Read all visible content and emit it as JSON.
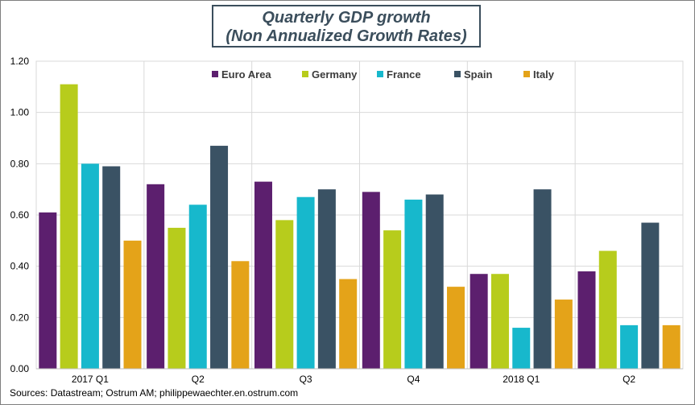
{
  "chart_data": {
    "type": "bar",
    "title": "Quarterly GDP growth",
    "subtitle": "(Non Annualized Growth Rates)",
    "categories": [
      "2017 Q1",
      "Q2",
      "Q3",
      "Q4",
      "2018 Q1",
      "Q2"
    ],
    "series": [
      {
        "name": "Euro Area",
        "color": "#5c1f6e",
        "values": [
          0.61,
          0.72,
          0.73,
          0.69,
          0.37,
          0.38
        ]
      },
      {
        "name": "Germany",
        "color": "#b7cc1c",
        "values": [
          1.11,
          0.55,
          0.58,
          0.54,
          0.37,
          0.46
        ]
      },
      {
        "name": "France",
        "color": "#17b8cc",
        "values": [
          0.8,
          0.64,
          0.67,
          0.66,
          0.16,
          0.17
        ]
      },
      {
        "name": "Spain",
        "color": "#3a5264",
        "values": [
          0.79,
          0.87,
          0.7,
          0.68,
          0.7,
          0.57
        ]
      },
      {
        "name": "Italy",
        "color": "#e4a319",
        "values": [
          0.5,
          0.42,
          0.35,
          0.32,
          0.27,
          0.17
        ]
      }
    ],
    "yticks": [
      "0.00",
      "0.20",
      "0.40",
      "0.60",
      "0.80",
      "1.00",
      "1.20"
    ],
    "ylim": [
      0,
      1.2
    ],
    "xlabel": "",
    "ylabel": "",
    "grid": true,
    "legend_position": "top"
  },
  "source": "Sources: Datastream;  Ostrum AM; philippewaechter.en.ostrum.com"
}
